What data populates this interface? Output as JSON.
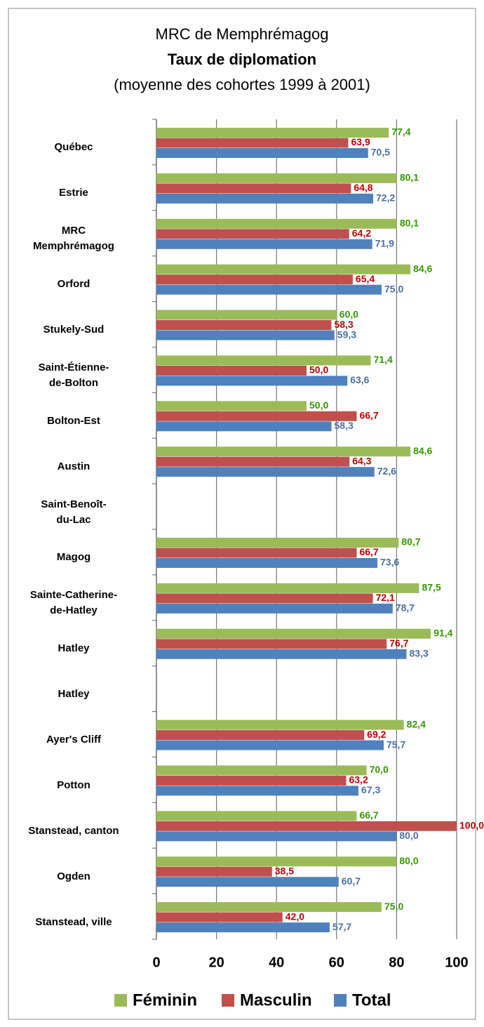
{
  "chart_data": {
    "type": "hbar",
    "title": "MRC de Memphrémagog",
    "subtitle": "Taux de diplomation",
    "caption": "(moyenne des cohortes 1999 à 2001)",
    "categories": [
      "Québec",
      "Estrie",
      "MRC\nMemphrémagog",
      "Orford",
      "Stukely-Sud",
      "Saint-Étienne-\nde-Bolton",
      "Bolton-Est",
      "Austin",
      "Saint-Benoît-\ndu-Lac",
      "Magog",
      "Sainte-Catherine-\nde-Hatley",
      "Hatley",
      "Hatley",
      "Ayer's Cliff",
      "Potton",
      "Stanstead, canton",
      "Ogden",
      "Stanstead, ville"
    ],
    "series": [
      {
        "name": "Féminin",
        "color": "#9bbb59",
        "label_color": "#339900",
        "values": [
          77.4,
          80.1,
          80.1,
          84.6,
          60.0,
          71.4,
          50.0,
          84.6,
          null,
          80.7,
          87.5,
          91.4,
          null,
          82.4,
          70.0,
          66.7,
          80.0,
          75.0
        ],
        "value_labels": [
          "77,4",
          "80,1",
          "80,1",
          "84,6",
          "60,0",
          "71,4",
          "50,0",
          "84,6",
          null,
          "80,7",
          "87,5",
          "91,4",
          null,
          "82,4",
          "70,0",
          "66,7",
          "80,0",
          "75,0"
        ]
      },
      {
        "name": "Masculin",
        "color": "#c0504d",
        "label_color": "#c00000",
        "values": [
          63.9,
          64.8,
          64.2,
          65.4,
          58.3,
          50.0,
          66.7,
          64.3,
          null,
          66.7,
          72.1,
          76.7,
          null,
          69.2,
          63.2,
          100.0,
          38.5,
          42.0
        ],
        "value_labels": [
          "63,9",
          "64,8",
          "64,2",
          "65,4",
          "58,3",
          "50,0",
          "66,7",
          "64,3",
          null,
          "66,7",
          "72,1",
          "76,7",
          null,
          "69,2",
          "63,2",
          "100,0",
          "38,5",
          "42,0"
        ]
      },
      {
        "name": "Total",
        "color": "#4f81bd",
        "label_color": "#4a6fa5",
        "values": [
          70.5,
          72.2,
          71.9,
          75.0,
          59.3,
          63.6,
          58.3,
          72.6,
          null,
          73.6,
          78.7,
          83.3,
          null,
          75.7,
          67.3,
          80.0,
          60.7,
          57.7
        ],
        "value_labels": [
          "70,5",
          "72,2",
          "71,9",
          "75,0",
          "59,3",
          "63,6",
          "58,3",
          "72,6",
          null,
          "73,6",
          "78,7",
          "83,3",
          null,
          "75,7",
          "67,3",
          "80,0",
          "60,7",
          "57,7"
        ]
      }
    ],
    "xlim": [
      0,
      100
    ],
    "xticks": [
      0,
      20,
      40,
      60,
      80,
      100
    ],
    "grid": true,
    "legend": "bottom"
  }
}
